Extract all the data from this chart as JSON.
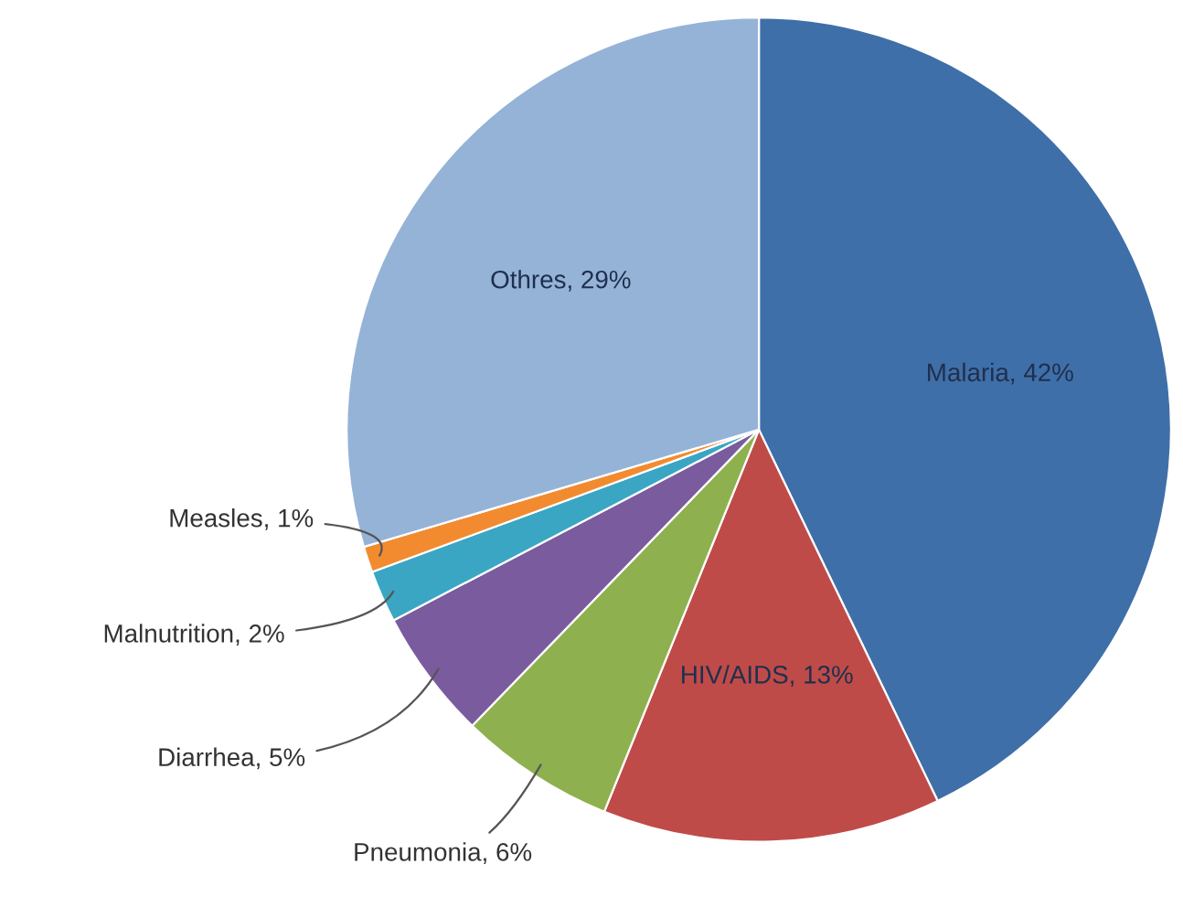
{
  "chart_data": {
    "type": "pie",
    "categories": [
      "Malaria",
      "HIV/AIDS",
      "Pneumonia",
      "Diarrhea",
      "Malnutrition",
      "Measles",
      "Othres"
    ],
    "values": [
      42,
      13,
      6,
      5,
      2,
      1,
      29
    ],
    "value_labels": [
      "42%",
      "13%",
      "6%",
      "5%",
      "2%",
      "1%",
      "29%"
    ],
    "colors": [
      "#3f6fa8",
      "#bf4b48",
      "#8fb04f",
      "#7a5c9e",
      "#3aa6c4",
      "#f28b30",
      "#95b3d7"
    ],
    "legend": false
  }
}
